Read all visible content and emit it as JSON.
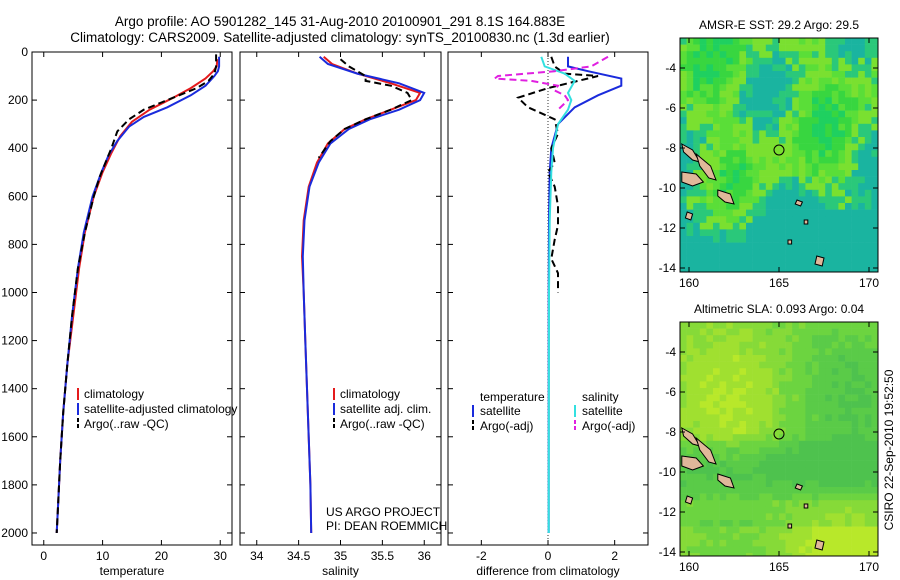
{
  "title_line1": "Argo profile: AO 5901282_145 31-Aug-2010 20100901_291 8.1S 164.883E",
  "title_line2": "Climatology: CARS2009. Satellite-adjusted climatology: synTS_20100830.nc (1.3d earlier)",
  "side_text": "CSIRO 22-Sep-2010 19:52:50",
  "project_line1": "US ARGO PROJECT",
  "project_line2": "PI: DEAN ROEMMICH",
  "colors": {
    "climatology": "#e41a1c",
    "satellite": "#1a2bdc",
    "argo": "#000000",
    "satellite_s": "#33e0e0",
    "argo_s": "#e020e0"
  },
  "chart_data": [
    {
      "type": "line",
      "id": "temperature",
      "xlabel": "temperature",
      "ylabel": "",
      "xlim": [
        -2,
        32
      ],
      "ylim": [
        2050,
        0
      ],
      "y_inverted": true,
      "xticks": [
        0,
        10,
        20,
        30
      ],
      "yticks": [
        0,
        200,
        400,
        600,
        800,
        1000,
        1200,
        1400,
        1600,
        1800,
        2000
      ],
      "legend": [
        "climatology",
        "satellite-adjusted climatology",
        "Argo(..raw -QC)"
      ],
      "series": [
        {
          "name": "climatology",
          "color": "#e41a1c",
          "points": [
            [
              29.5,
              30
            ],
            [
              29.4,
              60
            ],
            [
              28.8,
              80
            ],
            [
              27.5,
              110
            ],
            [
              25,
              150
            ],
            [
              22,
              190
            ],
            [
              18,
              240
            ],
            [
              15,
              290
            ],
            [
              13,
              350
            ],
            [
              11.5,
              420
            ],
            [
              10,
              500
            ],
            [
              8.5,
              600
            ],
            [
              7,
              750
            ],
            [
              6,
              900
            ],
            [
              5,
              1100
            ],
            [
              4,
              1300
            ],
            [
              3.3,
              1500
            ],
            [
              2.8,
              1700
            ],
            [
              2.4,
              1900
            ],
            [
              2.2,
              2000
            ]
          ]
        },
        {
          "name": "satellite-adjusted climatology",
          "color": "#1a2bdc",
          "points": [
            [
              29.8,
              20
            ],
            [
              29.8,
              60
            ],
            [
              29.6,
              80
            ],
            [
              29,
              100
            ],
            [
              27.5,
              140
            ],
            [
              25,
              180
            ],
            [
              21,
              230
            ],
            [
              17,
              270
            ],
            [
              14.5,
              310
            ],
            [
              12.5,
              370
            ],
            [
              11,
              430
            ],
            [
              9.8,
              500
            ],
            [
              8.3,
              600
            ],
            [
              6.8,
              750
            ],
            [
              5.8,
              900
            ],
            [
              4.8,
              1100
            ],
            [
              4,
              1300
            ],
            [
              3.3,
              1500
            ],
            [
              2.8,
              1700
            ],
            [
              2.4,
              1900
            ],
            [
              2.2,
              2000
            ]
          ]
        },
        {
          "name": "Argo(..raw -QC)",
          "color": "#000000",
          "dashed": true,
          "points": [
            [
              29.3,
              10
            ],
            [
              29.3,
              60
            ],
            [
              29,
              90
            ],
            [
              28,
              120
            ],
            [
              26,
              150
            ],
            [
              23,
              180
            ],
            [
              20,
              210
            ],
            [
              17,
              240
            ],
            [
              14.5,
              280
            ],
            [
              12.5,
              330
            ],
            [
              11.5,
              400
            ],
            [
              10.5,
              460
            ],
            [
              9.5,
              520
            ],
            [
              8.5,
              600
            ],
            [
              7,
              750
            ],
            [
              5.8,
              900
            ],
            [
              4.8,
              1100
            ],
            [
              4,
              1300
            ],
            [
              3.3,
              1500
            ],
            [
              2.8,
              1700
            ],
            [
              2.4,
              1900
            ],
            [
              2.2,
              2000
            ]
          ]
        }
      ]
    },
    {
      "type": "line",
      "id": "salinity",
      "xlabel": "salinity",
      "ylabel": "",
      "xlim": [
        33.8,
        36.2
      ],
      "ylim": [
        2050,
        0
      ],
      "y_inverted": true,
      "xticks": [
        34,
        34.5,
        35,
        35.5,
        36
      ],
      "legend": [
        "climatology",
        "satellite adj. clim.",
        "Argo(..raw -QC)"
      ],
      "series": [
        {
          "name": "climatology",
          "color": "#e41a1c",
          "points": [
            [
              34.8,
              20
            ],
            [
              34.9,
              50
            ],
            [
              35.2,
              90
            ],
            [
              35.6,
              130
            ],
            [
              35.95,
              170
            ],
            [
              35.9,
              200
            ],
            [
              35.6,
              240
            ],
            [
              35.3,
              280
            ],
            [
              35.05,
              320
            ],
            [
              34.85,
              380
            ],
            [
              34.72,
              460
            ],
            [
              34.62,
              560
            ],
            [
              34.56,
              700
            ],
            [
              34.54,
              850
            ],
            [
              34.56,
              1000
            ],
            [
              34.58,
              1200
            ],
            [
              34.6,
              1400
            ],
            [
              34.62,
              1600
            ],
            [
              34.64,
              1800
            ],
            [
              34.65,
              2000
            ]
          ]
        },
        {
          "name": "satellite adj. clim.",
          "color": "#1a2bdc",
          "points": [
            [
              34.75,
              20
            ],
            [
              34.85,
              50
            ],
            [
              35.2,
              90
            ],
            [
              35.7,
              130
            ],
            [
              36,
              170
            ],
            [
              35.95,
              200
            ],
            [
              35.7,
              240
            ],
            [
              35.35,
              280
            ],
            [
              35.1,
              320
            ],
            [
              34.88,
              380
            ],
            [
              34.74,
              460
            ],
            [
              34.63,
              560
            ],
            [
              34.57,
              700
            ],
            [
              34.55,
              850
            ],
            [
              34.56,
              1000
            ],
            [
              34.58,
              1200
            ],
            [
              34.6,
              1400
            ],
            [
              34.62,
              1600
            ],
            [
              34.64,
              1800
            ],
            [
              34.65,
              2000
            ]
          ]
        },
        {
          "name": "Argo(..raw -QC)",
          "color": "#000000",
          "dashed": true,
          "points": [
            [
              35.0,
              30
            ],
            [
              35.1,
              60
            ],
            [
              35.2,
              80
            ],
            [
              35.3,
              100
            ],
            [
              35.3,
              120
            ],
            [
              35.6,
              140
            ],
            [
              35.8,
              170
            ],
            [
              35.85,
              200
            ],
            [
              35.6,
              240
            ],
            [
              35.3,
              280
            ],
            [
              35.05,
              320
            ],
            [
              34.88,
              370
            ],
            [
              34.74,
              440
            ]
          ]
        }
      ]
    },
    {
      "type": "line",
      "id": "difference",
      "xlabel": "difference from climatology",
      "ylabel": "",
      "xlim": [
        -3,
        3
      ],
      "ylim": [
        2050,
        0
      ],
      "y_inverted": true,
      "xticks": [
        -2,
        0,
        2
      ],
      "legend_titles": [
        "temperature",
        "salinity"
      ],
      "legend": [
        "satellite",
        "Argo(-adj)",
        "satellite",
        "Argo(-adj)"
      ],
      "series": [
        {
          "name": "temperature satellite",
          "color": "#1a2bdc",
          "points": [
            [
              0.6,
              20
            ],
            [
              0.6,
              60
            ],
            [
              1.2,
              80
            ],
            [
              2.2,
              110
            ],
            [
              2.2,
              140
            ],
            [
              1.5,
              180
            ],
            [
              0.8,
              230
            ],
            [
              0.3,
              300
            ],
            [
              0.1,
              400
            ],
            [
              0.05,
              500
            ],
            [
              0.03,
              700
            ],
            [
              0.02,
              1000
            ],
            [
              0.02,
              1500
            ],
            [
              0.02,
              2000
            ]
          ]
        },
        {
          "name": "temperature Argo(-adj)",
          "color": "#000000",
          "dashed": true,
          "points": [
            [
              0.1,
              20
            ],
            [
              0.2,
              60
            ],
            [
              0.5,
              90
            ],
            [
              1.5,
              100
            ],
            [
              1.2,
              110
            ],
            [
              0,
              150
            ],
            [
              -0.9,
              190
            ],
            [
              -0.6,
              230
            ],
            [
              0.2,
              280
            ],
            [
              0.3,
              340
            ],
            [
              0.1,
              400
            ],
            [
              0.2,
              460
            ],
            [
              0,
              500
            ],
            [
              0.2,
              560
            ],
            [
              0.3,
              640
            ],
            [
              0.3,
              720
            ],
            [
              0.2,
              780
            ],
            [
              0.1,
              860
            ],
            [
              0.3,
              920
            ],
            [
              0.3,
              1000
            ]
          ]
        },
        {
          "name": "salinity satellite",
          "color": "#33e0e0",
          "points": [
            [
              -0.2,
              20
            ],
            [
              -0.1,
              60
            ],
            [
              0.5,
              90
            ],
            [
              0.8,
              120
            ],
            [
              0.6,
              170
            ],
            [
              0.7,
              200
            ],
            [
              0.6,
              240
            ],
            [
              0.3,
              300
            ],
            [
              0.15,
              400
            ],
            [
              0.1,
              500
            ],
            [
              0.05,
              700
            ],
            [
              0.03,
              1000
            ],
            [
              0.02,
              2000
            ]
          ]
        },
        {
          "name": "salinity Argo(-adj)",
          "color": "#e020e0",
          "dashed": true,
          "points": [
            [
              1.8,
              20
            ],
            [
              1.3,
              60
            ],
            [
              0.2,
              80
            ],
            [
              -1.5,
              100
            ],
            [
              -1.6,
              110
            ],
            [
              -0.5,
              120
            ],
            [
              0.3,
              140
            ],
            [
              0.2,
              160
            ],
            [
              0.5,
              180
            ],
            [
              0.6,
              200
            ],
            [
              0.3,
              240
            ]
          ]
        }
      ]
    }
  ],
  "maps": [
    {
      "title": "AMSR-E SST: 29.2 Argo: 29.5",
      "xticks": [
        160,
        165,
        170
      ],
      "yticks": [
        -4,
        -6,
        -8,
        -10,
        -12,
        -14
      ],
      "xlim": [
        159.5,
        170.5
      ],
      "ylim": [
        -14.2,
        -2.5
      ],
      "marker": [
        165,
        -8.1
      ],
      "palette": [
        "#1fd060",
        "#38d640",
        "#5ade38",
        "#7ae030",
        "#2ac87a",
        "#1ab4a0"
      ]
    },
    {
      "title": "Altimetric SLA: 0.093 Argo: 0.04",
      "xticks": [
        160,
        165,
        170
      ],
      "yticks": [
        -4,
        -6,
        -8,
        -10,
        -12,
        -14
      ],
      "xlim": [
        159.5,
        170.5
      ],
      "ylim": [
        -14.2,
        -2.5
      ],
      "marker": [
        165,
        -8.1
      ],
      "palette": [
        "#b8e82a",
        "#a0e030",
        "#86da38",
        "#6cd440",
        "#5acb48",
        "#4ec24e"
      ]
    }
  ]
}
